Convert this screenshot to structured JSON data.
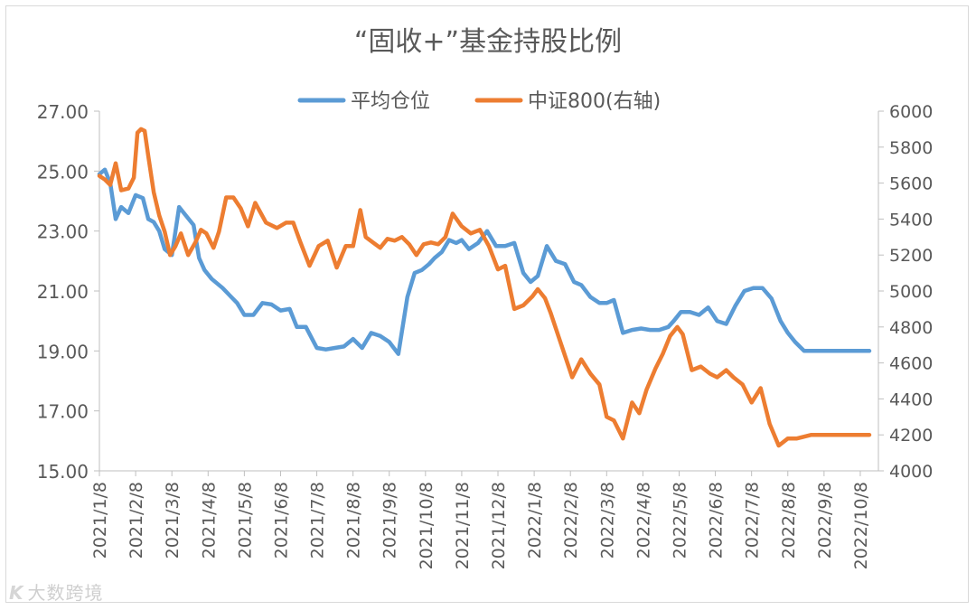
{
  "chart_data": {
    "type": "line",
    "title": "“固收+”基金持股比例",
    "legend": {
      "position": "top",
      "items": [
        "平均仓位",
        "中证800(右轴)"
      ]
    },
    "colors": {
      "平均仓位": "#5b9bd5",
      "中证800(右轴)": "#ed7d31"
    },
    "y_left": {
      "min": 15,
      "max": 27,
      "ticks": [
        "15.00",
        "17.00",
        "19.00",
        "21.00",
        "23.00",
        "25.00",
        "27.00"
      ]
    },
    "y_right": {
      "min": 4000,
      "max": 6000,
      "ticks": [
        "4000",
        "4200",
        "4400",
        "4600",
        "4800",
        "5000",
        "5200",
        "5400",
        "5600",
        "5800",
        "6000"
      ]
    },
    "x_ticks": [
      "2021/1/8",
      "2021/2/8",
      "2021/3/8",
      "2021/4/8",
      "2021/5/8",
      "2021/6/8",
      "2021/7/8",
      "2021/8/8",
      "2021/9/8",
      "2021/10/8",
      "2021/11/8",
      "2021/12/8",
      "2022/1/8",
      "2022/2/8",
      "2022/3/8",
      "2022/4/8",
      "2022/5/8",
      "2022/6/8",
      "2022/7/8",
      "2022/8/8",
      "2022/9/8",
      "2022/10/8"
    ],
    "x_range": [
      0,
      21.5
    ],
    "series": [
      {
        "name": "平均仓位",
        "axis": "left",
        "x": [
          0,
          0.15,
          0.3,
          0.45,
          0.6,
          0.8,
          1,
          1.2,
          1.35,
          1.5,
          1.65,
          1.8,
          2,
          2.2,
          2.4,
          2.6,
          2.75,
          2.9,
          3.1,
          3.25,
          3.4,
          3.6,
          3.8,
          4,
          4.25,
          4.5,
          4.75,
          5,
          5.25,
          5.45,
          5.7,
          6,
          6.25,
          6.5,
          6.75,
          7,
          7.25,
          7.5,
          7.75,
          8,
          8.25,
          8.5,
          8.7,
          8.9,
          9.1,
          9.25,
          9.45,
          9.65,
          9.85,
          10,
          10.2,
          10.45,
          10.7,
          10.95,
          11.2,
          11.45,
          11.7,
          11.9,
          12.1,
          12.35,
          12.6,
          12.85,
          13.1,
          13.3,
          13.55,
          13.8,
          14,
          14.2,
          14.45,
          14.7,
          14.95,
          15.2,
          15.45,
          15.7,
          15.85,
          16.05,
          16.3,
          16.55,
          16.8,
          17.05,
          17.3,
          17.55,
          17.8,
          18.05,
          18.3,
          18.55,
          18.8,
          19,
          19.2,
          19.45,
          19.7,
          19.95,
          20.15,
          20.4,
          20.6,
          20.85,
          21.05,
          21.25
        ],
        "values": [
          24.9,
          25.05,
          24.6,
          23.4,
          23.8,
          23.6,
          24.2,
          24.1,
          23.4,
          23.3,
          23.0,
          22.4,
          22.2,
          23.8,
          23.5,
          23.2,
          22.1,
          21.7,
          21.4,
          21.25,
          21.1,
          20.85,
          20.6,
          20.2,
          20.2,
          20.6,
          20.55,
          20.35,
          20.4,
          19.8,
          19.8,
          19.1,
          19.05,
          19.1,
          19.15,
          19.4,
          19.1,
          19.6,
          19.5,
          19.3,
          18.9,
          20.8,
          21.6,
          21.7,
          21.9,
          22.1,
          22.3,
          22.7,
          22.6,
          22.7,
          22.4,
          22.6,
          23.0,
          22.5,
          22.5,
          22.6,
          21.6,
          21.3,
          21.5,
          22.5,
          22.0,
          21.9,
          21.3,
          21.2,
          20.8,
          20.6,
          20.6,
          20.7,
          19.6,
          19.7,
          19.75,
          19.7,
          19.7,
          19.8,
          20.0,
          20.3,
          20.3,
          20.2,
          20.45,
          20.0,
          19.9,
          20.5,
          21.0,
          21.1,
          21.1,
          20.75,
          20.0,
          19.6,
          19.3,
          19.0,
          19.0,
          19.0,
          19.0,
          19.0,
          19.0,
          19.0,
          19.0,
          19.0
        ]
      },
      {
        "name": "中证800(右轴)",
        "axis": "right",
        "x": [
          0,
          0.15,
          0.3,
          0.45,
          0.6,
          0.8,
          0.95,
          1.05,
          1.15,
          1.25,
          1.35,
          1.5,
          1.65,
          1.8,
          1.95,
          2.1,
          2.25,
          2.45,
          2.65,
          2.8,
          2.95,
          3.15,
          3.3,
          3.5,
          3.7,
          3.9,
          4.1,
          4.3,
          4.6,
          4.9,
          5.15,
          5.35,
          5.55,
          5.8,
          6.05,
          6.3,
          6.55,
          6.8,
          7.0,
          7.2,
          7.35,
          7.55,
          7.75,
          7.95,
          8.15,
          8.35,
          8.55,
          8.75,
          8.95,
          9.15,
          9.35,
          9.55,
          9.75,
          10.0,
          10.25,
          10.5,
          10.75,
          11.0,
          11.2,
          11.45,
          11.7,
          11.95,
          12.1,
          12.3,
          12.45,
          12.65,
          12.85,
          13.05,
          13.3,
          13.55,
          13.8,
          14.0,
          14.2,
          14.45,
          14.7,
          14.9,
          15.1,
          15.35,
          15.55,
          15.75,
          15.95,
          16.1,
          16.35,
          16.6,
          16.85,
          17.05,
          17.3,
          17.5,
          17.75,
          18.0,
          18.25,
          18.5,
          18.75,
          19.0,
          19.25,
          19.45,
          19.65,
          19.85,
          20.1,
          20.35,
          20.6,
          20.85,
          21.05,
          21.25
        ],
        "values": [
          5640,
          5620,
          5590,
          5710,
          5560,
          5570,
          5630,
          5880,
          5900,
          5890,
          5750,
          5550,
          5420,
          5330,
          5200,
          5250,
          5320,
          5200,
          5270,
          5340,
          5320,
          5240,
          5330,
          5520,
          5520,
          5460,
          5360,
          5490,
          5380,
          5350,
          5380,
          5380,
          5270,
          5140,
          5250,
          5280,
          5130,
          5250,
          5250,
          5450,
          5300,
          5270,
          5240,
          5290,
          5280,
          5300,
          5260,
          5200,
          5260,
          5270,
          5260,
          5300,
          5430,
          5360,
          5320,
          5340,
          5250,
          5120,
          5140,
          4900,
          4920,
          4970,
          5010,
          4960,
          4880,
          4760,
          4640,
          4520,
          4620,
          4540,
          4480,
          4300,
          4280,
          4180,
          4380,
          4320,
          4450,
          4570,
          4650,
          4750,
          4800,
          4760,
          4560,
          4580,
          4540,
          4520,
          4560,
          4520,
          4480,
          4380,
          4460,
          4260,
          4140,
          4180,
          4180,
          4190,
          4200,
          4200,
          4200,
          4200,
          4200,
          4200,
          4200,
          4200
        ]
      }
    ]
  },
  "watermark": {
    "logo": "K",
    "text": "大数跨境"
  }
}
